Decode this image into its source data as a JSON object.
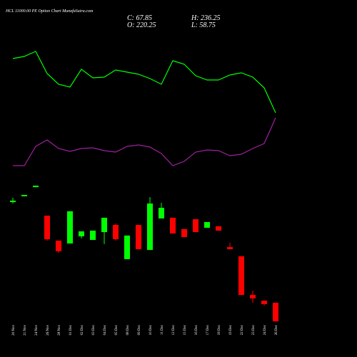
{
  "chart_data": {
    "type": "candlestick",
    "title": "HCL 11000.00 PE Option Chart MunafaSutra.com",
    "ohlc_labels": {
      "close": "C: 67.85",
      "high": "H: 236.25",
      "open": "O: 220.25",
      "low": "L: 58.75"
    },
    "categories": [
      "20 Nov",
      "21 Nov",
      "24 Nov",
      "26 Nov",
      "28 Nov",
      "01 Dec",
      "02 Dec",
      "03 Dec",
      "04 Dec",
      "05 Dec",
      "08 Dec",
      "09 Dec",
      "10 Dec",
      "11 Dec",
      "12 Dec",
      "15 Dec",
      "16 Dec",
      "17 Dec",
      "18 Dec",
      "19 Dec",
      "22 Dec",
      "23 Dec",
      "24 Dec",
      "26 Dec"
    ],
    "open": [
      89.0,
      92.9,
      99.0,
      80.0,
      63.3,
      61.4,
      66.2,
      63.8,
      69.0,
      73.8,
      51.0,
      73.8,
      57.1,
      78.1,
      78.6,
      71.0,
      77.6,
      71.9,
      72.9,
      59.0,
      52.9,
      27.1,
      23.3,
      21.9
    ],
    "high": [
      91.9,
      93.8,
      100.0,
      80.0,
      63.3,
      82.9,
      69.5,
      70.0,
      78.6,
      74.8,
      66.7,
      73.8,
      92.4,
      88.6,
      78.6,
      71.0,
      77.6,
      75.7,
      72.9,
      61.9,
      52.9,
      30.0,
      23.3,
      21.9
    ],
    "low": [
      88.1,
      92.9,
      99.0,
      63.3,
      55.2,
      61.4,
      64.8,
      63.8,
      61.0,
      63.3,
      51.0,
      57.6,
      57.1,
      78.1,
      68.1,
      65.7,
      69.0,
      71.9,
      70.0,
      57.6,
      27.1,
      21.9,
      20.0,
      9.5
    ],
    "close": [
      90.0,
      93.8,
      100.0,
      64.3,
      56.2,
      82.9,
      69.5,
      70.0,
      78.6,
      64.3,
      66.7,
      57.6,
      88.1,
      85.2,
      68.1,
      65.7,
      69.0,
      75.7,
      70.0,
      57.6,
      27.1,
      24.8,
      21.0,
      9.5
    ],
    "ylim": [
      0,
      100
    ],
    "up_color": "#00ff00",
    "down_color": "#ff0000",
    "y2lim": [
      0,
      100
    ],
    "series": [
      {
        "color": "#00ff00",
        "axis": "y2",
        "values": [
          84,
          85.5,
          89,
          73.5,
          66,
          64,
          76.5,
          70.5,
          71,
          76,
          74.5,
          73,
          70,
          66,
          82.5,
          80,
          72,
          69,
          69,
          72.5,
          74,
          71,
          63.5,
          46
        ]
      },
      {
        "color": "#a020a0",
        "axis": "y2",
        "values": [
          9,
          9,
          22.5,
          27,
          21,
          19,
          21,
          21.5,
          19.5,
          18.5,
          22.5,
          23.5,
          22,
          17.5,
          9,
          12,
          18.5,
          20,
          19.5,
          16,
          17,
          21,
          24.5,
          42.5
        ]
      }
    ]
  }
}
